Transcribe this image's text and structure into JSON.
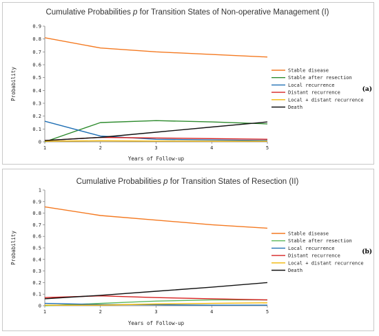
{
  "chart_data": [
    {
      "type": "line",
      "panel_label": "(a)",
      "title": "Cumulative Probabilities p for Transition States of Non-operative Management (I)",
      "title_parts": [
        "Cumulative Probabilities ",
        "p",
        " for Transition States of Non-operative Management (I)"
      ],
      "xlabel": "Years of Follow-up",
      "ylabel": "Probability",
      "x": [
        1,
        2,
        3,
        4,
        5
      ],
      "xticks": [
        "1",
        "2",
        "3",
        "4",
        "5"
      ],
      "ylim": [
        0,
        0.9
      ],
      "yticks": [
        "0",
        "0.1",
        "0.2",
        "0.3",
        "0.4",
        "0.5",
        "0.6",
        "0.7",
        "0.8",
        "0.9"
      ],
      "legend_position": "right",
      "series": [
        {
          "name": "Stable disease",
          "color": "#f47920",
          "values": [
            0.81,
            0.73,
            0.7,
            0.68,
            0.66
          ]
        },
        {
          "name": "Stable after resection",
          "color": "#2e8b2e",
          "values": [
            0.0,
            0.15,
            0.165,
            0.155,
            0.14
          ]
        },
        {
          "name": "Local recurrence",
          "color": "#1f6fb4",
          "values": [
            0.16,
            0.045,
            0.02,
            0.015,
            0.01
          ]
        },
        {
          "name": "Distant recurrence",
          "color": "#d62020",
          "values": [
            0.01,
            0.035,
            0.03,
            0.025,
            0.02
          ]
        },
        {
          "name": "Local + distant recurrence",
          "color": "#f2b705",
          "values": [
            0.005,
            0.008,
            0.006,
            0.005,
            0.005
          ]
        },
        {
          "name": "Death",
          "color": "#111111",
          "values": [
            0.01,
            0.035,
            0.075,
            0.115,
            0.155
          ]
        }
      ]
    },
    {
      "type": "line",
      "panel_label": "(b)",
      "title": "Cumulative Probabilities p for Transition States of Resection (II)",
      "title_parts": [
        "Cumulative Probabilities ",
        "p",
        " for Transition States of Resection (II)"
      ],
      "xlabel": "Years of Follow-up",
      "ylabel": "Probability",
      "x": [
        1,
        2,
        3,
        4,
        5
      ],
      "xticks": [
        "1",
        "2",
        "3",
        "4",
        "5"
      ],
      "ylim": [
        0,
        1
      ],
      "yticks": [
        "0",
        "0.1",
        "0.2",
        "0.3",
        "0.4",
        "0.5",
        "0.6",
        "0.7",
        "0.8",
        "0.9",
        "1"
      ],
      "legend_position": "right",
      "series": [
        {
          "name": "Stable disease",
          "color": "#f47920",
          "values": [
            0.855,
            0.78,
            0.74,
            0.7,
            0.67
          ]
        },
        {
          "name": "Stable after resection",
          "color": "#5cb85c",
          "values": [
            0.0,
            0.02,
            0.04,
            0.05,
            0.05
          ]
        },
        {
          "name": "Local recurrence",
          "color": "#1f6fb4",
          "values": [
            0.02,
            0.01,
            0.008,
            0.005,
            0.005
          ]
        },
        {
          "name": "Distant recurrence",
          "color": "#d62020",
          "values": [
            0.07,
            0.085,
            0.07,
            0.06,
            0.05
          ]
        },
        {
          "name": "Local + distant recurrence",
          "color": "#f2b705",
          "values": [
            0.005,
            0.005,
            0.015,
            0.02,
            0.025
          ]
        },
        {
          "name": "Death",
          "color": "#111111",
          "values": [
            0.06,
            0.09,
            0.125,
            0.16,
            0.2
          ]
        }
      ]
    }
  ]
}
